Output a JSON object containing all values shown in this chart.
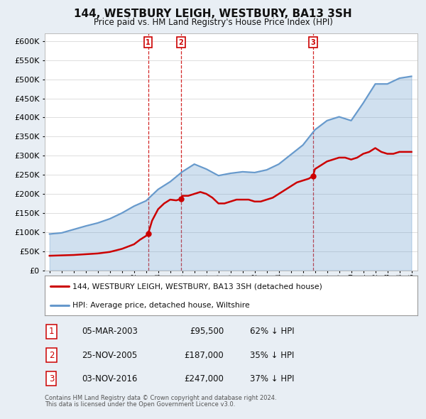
{
  "title": "144, WESTBURY LEIGH, WESTBURY, BA13 3SH",
  "subtitle": "Price paid vs. HM Land Registry's House Price Index (HPI)",
  "hpi_color": "#6699cc",
  "price_color": "#cc0000",
  "background_color": "#e8eef4",
  "plot_bg_color": "#ffffff",
  "legend_label_red": "144, WESTBURY LEIGH, WESTBURY, BA13 3SH (detached house)",
  "legend_label_blue": "HPI: Average price, detached house, Wiltshire",
  "transactions": [
    {
      "num": 1,
      "date": "05-MAR-2003",
      "price": 95500,
      "x": 2003.17,
      "hpi_pct": "62% ↓ HPI"
    },
    {
      "num": 2,
      "date": "25-NOV-2005",
      "price": 187000,
      "x": 2005.9,
      "hpi_pct": "35% ↓ HPI"
    },
    {
      "num": 3,
      "date": "03-NOV-2016",
      "price": 247000,
      "x": 2016.84,
      "hpi_pct": "37% ↓ HPI"
    }
  ],
  "footnote1": "Contains HM Land Registry data © Crown copyright and database right 2024.",
  "footnote2": "This data is licensed under the Open Government Licence v3.0.",
  "ylim": [
    0,
    620000
  ],
  "xlim_start": 1994.6,
  "xlim_end": 2025.5,
  "hpi_years": [
    1995,
    1996,
    1997,
    1998,
    1999,
    2000,
    2001,
    2002,
    2003,
    2004,
    2005,
    2006,
    2007,
    2008,
    2009,
    2010,
    2011,
    2012,
    2013,
    2014,
    2015,
    2016,
    2017,
    2018,
    2019,
    2020,
    2021,
    2022,
    2023,
    2024,
    2025
  ],
  "hpi_values": [
    95000,
    98000,
    107000,
    116000,
    124000,
    135000,
    150000,
    168000,
    182000,
    212000,
    232000,
    258000,
    278000,
    265000,
    248000,
    254000,
    258000,
    256000,
    263000,
    278000,
    303000,
    328000,
    368000,
    392000,
    402000,
    392000,
    438000,
    488000,
    488000,
    503000,
    508000
  ],
  "price_years": [
    1995.0,
    1995.5,
    1996.0,
    1996.5,
    1997.0,
    1997.5,
    1998.0,
    1998.5,
    1999.0,
    1999.5,
    2000.0,
    2000.5,
    2001.0,
    2001.5,
    2002.0,
    2002.5,
    2003.0,
    2003.17,
    2003.5,
    2004.0,
    2004.5,
    2005.0,
    2005.5,
    2005.9,
    2006.0,
    2006.5,
    2007.0,
    2007.5,
    2008.0,
    2008.5,
    2009.0,
    2009.5,
    2010.0,
    2010.5,
    2011.0,
    2011.5,
    2012.0,
    2012.5,
    2013.0,
    2013.5,
    2014.0,
    2014.5,
    2015.0,
    2015.5,
    2016.0,
    2016.5,
    2016.84,
    2017.0,
    2017.5,
    2018.0,
    2018.5,
    2019.0,
    2019.5,
    2020.0,
    2020.5,
    2021.0,
    2021.5,
    2022.0,
    2022.5,
    2023.0,
    2023.5,
    2024.0,
    2024.5,
    2025.0
  ],
  "price_values": [
    38000,
    38500,
    39000,
    39500,
    40000,
    41000,
    42000,
    43000,
    44000,
    46000,
    48000,
    52000,
    56000,
    62000,
    68000,
    80000,
    90000,
    95500,
    130000,
    160000,
    175000,
    185000,
    183000,
    187000,
    195000,
    195000,
    200000,
    205000,
    200000,
    190000,
    175000,
    175000,
    180000,
    185000,
    185000,
    185000,
    180000,
    180000,
    185000,
    190000,
    200000,
    210000,
    220000,
    230000,
    235000,
    240000,
    247000,
    265000,
    275000,
    285000,
    290000,
    295000,
    295000,
    290000,
    295000,
    305000,
    310000,
    320000,
    310000,
    305000,
    305000,
    310000,
    310000,
    310000
  ]
}
